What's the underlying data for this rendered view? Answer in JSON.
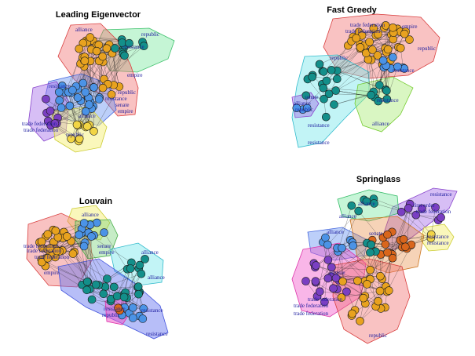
{
  "panels": [
    {
      "title": "Leading Eigenvector",
      "labels": [
        "alliance",
        "republic",
        "trade federation",
        "trade federation",
        "resistance",
        "resistance",
        "senate",
        "empire",
        "alliance",
        "republic",
        "republic",
        "empire",
        "resistance"
      ]
    },
    {
      "title": "Fast Greedy",
      "labels": [
        "trade federation",
        "trade federation",
        "resistance",
        "resistance",
        "alliance",
        "republic",
        "senate",
        "republic",
        "empire",
        "resistance",
        "resistance",
        "alliance",
        "republic"
      ]
    },
    {
      "title": "Louvain",
      "labels": [
        "alliance",
        "trade federation",
        "trade federation",
        "trade federation",
        "senate",
        "empire",
        "alliance",
        "alliance",
        "resistance",
        "resistance",
        "republic",
        "resistance",
        "empire"
      ]
    },
    {
      "title": "Springlass",
      "labels": [
        "resistance",
        "first order",
        "trade federation",
        "alliance",
        "alliance",
        "alliance",
        "resistance",
        "resistance",
        "trade federation",
        "trade federation",
        "trade federation",
        "republic",
        "empire",
        "senate"
      ]
    }
  ],
  "colors": {
    "node_orange": "#e8a21f",
    "node_blue": "#4b93e6",
    "node_teal": "#138f8a",
    "node_darkorange": "#d9661c",
    "node_purple": "#7a3fc2",
    "node_yellow": "#f2d544",
    "label": "#1a1a9e"
  }
}
